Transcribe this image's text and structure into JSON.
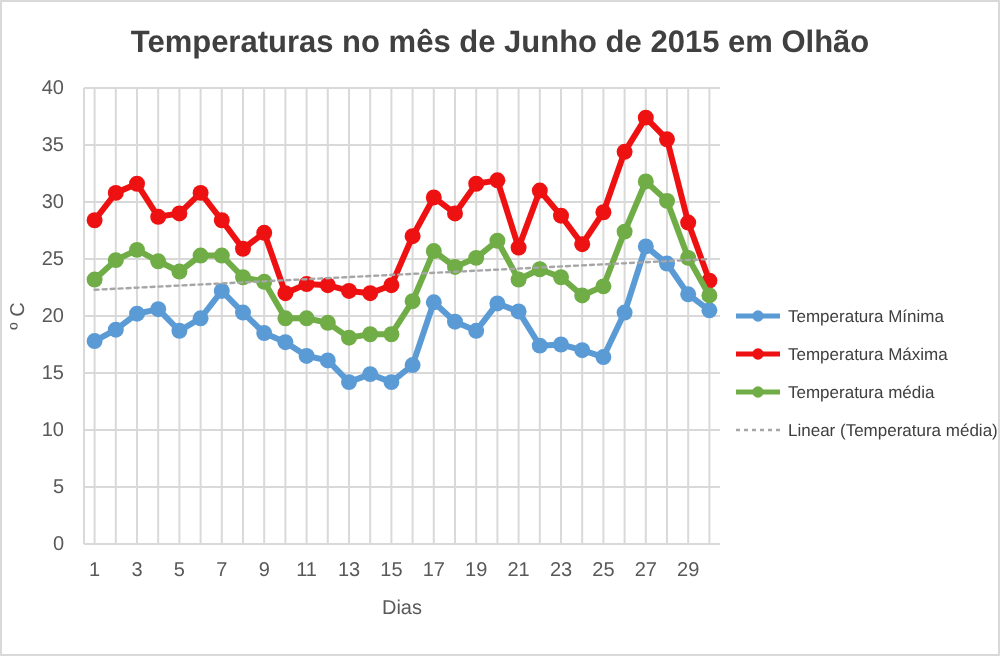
{
  "chart_data": {
    "type": "line",
    "title": "Temperaturas no mês de Junho de 2015 em Olhão",
    "xlabel": "Dias",
    "ylabel": "º C",
    "x": [
      1,
      2,
      3,
      4,
      5,
      6,
      7,
      8,
      9,
      10,
      11,
      12,
      13,
      14,
      15,
      16,
      17,
      18,
      19,
      20,
      21,
      22,
      23,
      24,
      25,
      26,
      27,
      28,
      29,
      30
    ],
    "xlim": [
      0.5,
      30.5
    ],
    "xticks": [
      1,
      {
        "value": 2,
        "label": null
      },
      3,
      {
        "value": 4,
        "label": null
      },
      5,
      {
        "value": 6,
        "label": null
      },
      7,
      {
        "value": 8,
        "label": null
      },
      9,
      {
        "value": 10,
        "label": null
      },
      11,
      {
        "value": 12,
        "label": null
      },
      13,
      {
        "value": 14,
        "label": null
      },
      15,
      {
        "value": 16,
        "label": null
      },
      17,
      {
        "value": 18,
        "label": null
      },
      19,
      {
        "value": 20,
        "label": null
      },
      21,
      {
        "value": 22,
        "label": null
      },
      23,
      {
        "value": 24,
        "label": null
      },
      25,
      {
        "value": 26,
        "label": null
      },
      27,
      {
        "value": 28,
        "label": null
      },
      29,
      {
        "value": 30,
        "label": null
      }
    ],
    "ylim": [
      0,
      40
    ],
    "yticks": [
      0,
      5,
      10,
      15,
      20,
      25,
      30,
      35,
      40
    ],
    "grid": true,
    "legend": "right",
    "marker": "circle",
    "series": [
      {
        "name": "Temperatura Mínima",
        "color": "#5b9bd5",
        "values": [
          17.8,
          18.8,
          20.2,
          20.6,
          18.7,
          19.8,
          22.2,
          20.3,
          18.5,
          17.7,
          16.5,
          16.1,
          14.2,
          14.9,
          14.2,
          15.7,
          21.2,
          19.5,
          18.7,
          21.1,
          20.4,
          17.4,
          17.5,
          17.0,
          16.4,
          20.3,
          26.1,
          24.6,
          21.9,
          20.5
        ]
      },
      {
        "name": "Temperatura Máxima",
        "color": "#ee1111",
        "values": [
          28.4,
          30.8,
          31.6,
          28.7,
          29.0,
          30.8,
          28.4,
          25.9,
          27.3,
          22.0,
          22.8,
          22.7,
          22.2,
          22.0,
          22.7,
          27.0,
          30.4,
          29.0,
          31.6,
          31.9,
          26.0,
          31.0,
          28.8,
          26.3,
          29.1,
          34.4,
          37.4,
          35.5,
          28.2,
          23.1
        ]
      },
      {
        "name": "Temperatura média",
        "color": "#70ad47",
        "values": [
          23.2,
          24.9,
          25.8,
          24.8,
          23.9,
          25.3,
          25.3,
          23.4,
          23.0,
          19.8,
          19.8,
          19.4,
          18.1,
          18.4,
          18.4,
          21.3,
          25.7,
          24.3,
          25.1,
          26.6,
          23.2,
          24.1,
          23.4,
          21.8,
          22.6,
          27.4,
          31.8,
          30.1,
          25.1,
          21.8
        ]
      },
      {
        "name": "Linear (Temperatura média)",
        "color": "#a6a6a6",
        "x": [
          1,
          30
        ],
        "values": [
          22.3,
          25.0
        ],
        "marker": "none",
        "line_style": "dotted"
      }
    ]
  }
}
